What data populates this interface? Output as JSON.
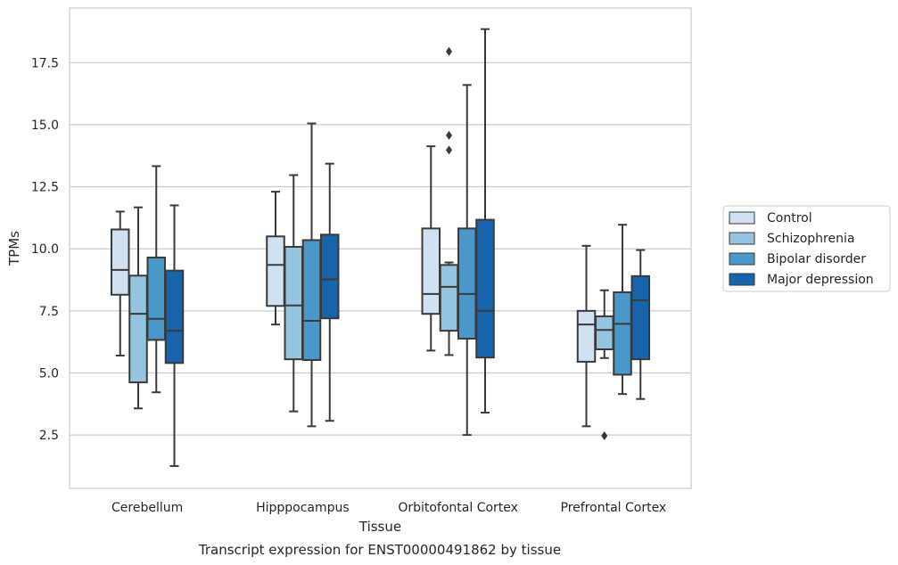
{
  "chart_data": {
    "type": "boxplot",
    "title": "Transcript expression for ENST00000491862 by tissue",
    "xlabel": "Tissue",
    "ylabel": "TPMs",
    "ylim": [
      0.35,
      19.7
    ],
    "yticks": [
      2.5,
      5.0,
      7.5,
      10.0,
      12.5,
      15.0,
      17.5
    ],
    "ytick_labels": [
      "2.5",
      "5.0",
      "7.5",
      "10.0",
      "12.5",
      "15.0",
      "17.5"
    ],
    "grid": true,
    "legend_position": "right",
    "categories": [
      "Cerebellum",
      "Hipppocampus",
      "Orbitofontal Cortex",
      "Prefrontal Cortex"
    ],
    "series": [
      {
        "name": "Control",
        "color": "#d0e1f2",
        "boxes": [
          {
            "whislo": 5.7,
            "q1": 8.15,
            "med": 9.15,
            "q3": 10.78,
            "whishi": 11.5,
            "fliers": []
          },
          {
            "whislo": 6.95,
            "q1": 7.7,
            "med": 9.35,
            "q3": 10.5,
            "whishi": 12.3,
            "fliers": []
          },
          {
            "whislo": 5.9,
            "q1": 7.38,
            "med": 8.18,
            "q3": 10.82,
            "whishi": 14.13,
            "fliers": []
          },
          {
            "whislo": 2.85,
            "q1": 5.45,
            "med": 6.95,
            "q3": 7.5,
            "whishi": 10.12,
            "fliers": []
          }
        ]
      },
      {
        "name": "Schizophrenia",
        "color": "#94c4df",
        "boxes": [
          {
            "whislo": 3.57,
            "q1": 4.62,
            "med": 7.38,
            "q3": 8.92,
            "whishi": 11.67,
            "fliers": []
          },
          {
            "whislo": 3.45,
            "q1": 5.55,
            "med": 7.72,
            "q3": 10.08,
            "whishi": 12.97,
            "fliers": []
          },
          {
            "whislo": 5.72,
            "q1": 6.7,
            "med": 8.47,
            "q3": 9.35,
            "whishi": 9.45,
            "fliers": [
              17.95,
              14.57,
              13.98
            ]
          },
          {
            "whislo": 5.6,
            "q1": 5.95,
            "med": 6.73,
            "q3": 7.28,
            "whishi": 8.33,
            "fliers": [
              2.47
            ]
          }
        ]
      },
      {
        "name": "Bipolar disorder",
        "color": "#4a98c9",
        "boxes": [
          {
            "whislo": 4.22,
            "q1": 6.33,
            "med": 7.18,
            "q3": 9.65,
            "whishi": 13.33,
            "fliers": []
          },
          {
            "whislo": 2.85,
            "q1": 5.52,
            "med": 7.1,
            "q3": 10.35,
            "whishi": 15.05,
            "fliers": []
          },
          {
            "whislo": 2.5,
            "q1": 6.38,
            "med": 8.18,
            "q3": 10.82,
            "whishi": 16.6,
            "fliers": []
          },
          {
            "whislo": 4.15,
            "q1": 4.93,
            "med": 6.98,
            "q3": 8.25,
            "whishi": 10.97,
            "fliers": []
          }
        ]
      },
      {
        "name": "Major depression",
        "color": "#1764ab",
        "boxes": [
          {
            "whislo": 1.25,
            "q1": 5.4,
            "med": 6.7,
            "q3": 9.12,
            "whishi": 11.75,
            "fliers": []
          },
          {
            "whislo": 3.07,
            "q1": 7.2,
            "med": 8.77,
            "q3": 10.57,
            "whishi": 13.43,
            "fliers": []
          },
          {
            "whislo": 3.4,
            "q1": 5.62,
            "med": 7.5,
            "q3": 11.17,
            "whishi": 18.85,
            "fliers": []
          },
          {
            "whislo": 3.95,
            "q1": 5.55,
            "med": 7.93,
            "q3": 8.9,
            "whishi": 9.95,
            "fliers": []
          }
        ]
      }
    ]
  }
}
